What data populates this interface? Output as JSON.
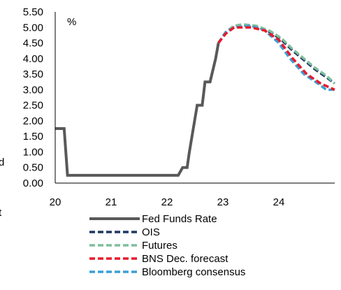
{
  "chart_data": {
    "type": "line",
    "title": "",
    "xlabel": "",
    "ylabel": "",
    "unit_label": "%",
    "xlim": [
      20,
      25
    ],
    "ylim": [
      0,
      5.5
    ],
    "y_ticks": [
      "0.00",
      "0.50",
      "1.00",
      "1.50",
      "2.00",
      "2.50",
      "3.00",
      "3.50",
      "4.00",
      "4.50",
      "5.00",
      "5.50"
    ],
    "x_ticks": [
      "20",
      "21",
      "22",
      "23",
      "24"
    ],
    "grid": false,
    "legend_position": "bottom",
    "clipped_left_text": [
      "d",
      "t"
    ],
    "series": [
      {
        "name": "Fed Funds Rate",
        "color": "#595959",
        "dash": "solid",
        "points": [
          [
            20.0,
            1.75
          ],
          [
            20.16,
            1.75
          ],
          [
            20.22,
            0.25
          ],
          [
            22.2,
            0.25
          ],
          [
            22.28,
            0.5
          ],
          [
            22.36,
            0.5
          ],
          [
            22.4,
            1.0
          ],
          [
            22.54,
            2.5
          ],
          [
            22.63,
            2.5
          ],
          [
            22.68,
            3.25
          ],
          [
            22.77,
            3.25
          ],
          [
            22.87,
            4.0
          ],
          [
            22.92,
            4.5
          ]
        ]
      },
      {
        "name": "OIS",
        "color": "#1f3864",
        "dash": "dashed",
        "points": [
          [
            22.92,
            4.5
          ],
          [
            23.05,
            4.85
          ],
          [
            23.2,
            5.05
          ],
          [
            23.35,
            5.08
          ],
          [
            23.6,
            5.03
          ],
          [
            23.85,
            4.85
          ],
          [
            24.05,
            4.6
          ],
          [
            24.25,
            4.25
          ],
          [
            24.45,
            3.95
          ],
          [
            24.65,
            3.65
          ],
          [
            24.85,
            3.4
          ],
          [
            25.0,
            3.2
          ]
        ]
      },
      {
        "name": "Futures",
        "color": "#7fbf9f",
        "dash": "dashed",
        "points": [
          [
            22.92,
            4.5
          ],
          [
            23.05,
            4.85
          ],
          [
            23.2,
            5.05
          ],
          [
            23.35,
            5.1
          ],
          [
            23.6,
            5.05
          ],
          [
            23.85,
            4.88
          ],
          [
            24.05,
            4.65
          ],
          [
            24.25,
            4.3
          ],
          [
            24.45,
            4.0
          ],
          [
            24.65,
            3.7
          ],
          [
            24.85,
            3.45
          ],
          [
            25.0,
            3.2
          ]
        ]
      },
      {
        "name": "BNS Dec. forecast",
        "color": "#e8192c",
        "dash": "dashed",
        "points": [
          [
            22.92,
            4.5
          ],
          [
            23.05,
            4.8
          ],
          [
            23.2,
            5.0
          ],
          [
            23.5,
            5.0
          ],
          [
            23.75,
            4.9
          ],
          [
            24.0,
            4.6
          ],
          [
            24.25,
            4.0
          ],
          [
            24.5,
            3.5
          ],
          [
            24.75,
            3.2
          ],
          [
            25.0,
            3.0
          ]
        ]
      },
      {
        "name": "Bloomberg consensus",
        "color": "#3a9fd6",
        "dash": "dashed",
        "points": [
          [
            22.92,
            4.5
          ],
          [
            23.05,
            4.85
          ],
          [
            23.2,
            5.0
          ],
          [
            23.5,
            5.05
          ],
          [
            23.75,
            4.9
          ],
          [
            24.0,
            4.5
          ],
          [
            24.2,
            4.0
          ],
          [
            24.45,
            3.5
          ],
          [
            24.7,
            3.2
          ],
          [
            24.85,
            3.0
          ],
          [
            25.0,
            3.0
          ]
        ]
      }
    ]
  }
}
